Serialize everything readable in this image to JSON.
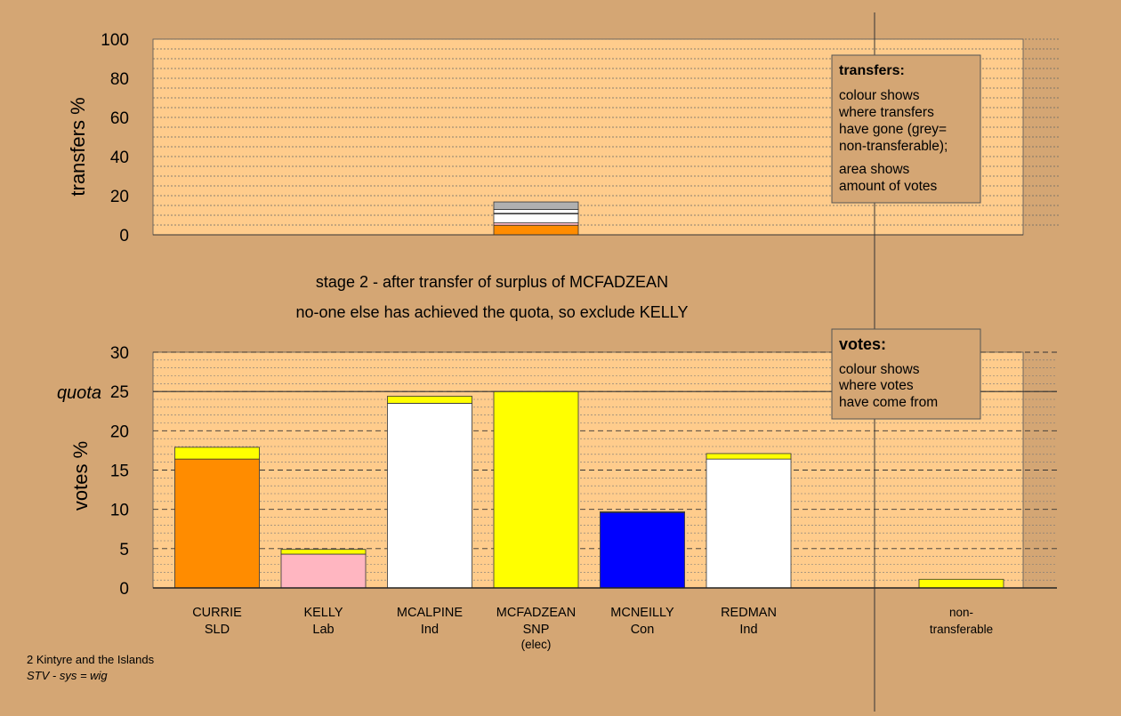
{
  "colors": {
    "background": "#d4a674",
    "plot_bg": "#ffcc8c",
    "SLD": "#ff8c00",
    "Lab": "#ffb6c1",
    "Ind": "#ffffff",
    "SNP": "#ffff00",
    "Con": "#0000ff",
    "nontransferable": "#b0b0b0"
  },
  "stage_line1": "stage 2 - after transfer of surplus of MCFADZEAN",
  "stage_line2": "no-one else has achieved the quota, so exclude KELLY",
  "footer": {
    "line1": "2 Kintyre and the Islands",
    "line2": "STV - sys = wig"
  },
  "transfers_legend": {
    "title": "transfers:",
    "lines1": [
      "colour shows",
      "where transfers",
      "have gone (grey=",
      "non-transferable);"
    ],
    "lines2": [
      "area shows",
      "amount of votes"
    ]
  },
  "votes_legend": {
    "title": "votes:",
    "lines": [
      "colour shows",
      "where votes",
      "have come from"
    ]
  },
  "chart_data": [
    {
      "type": "bar",
      "ylabel": "transfers %",
      "ylim": [
        0,
        100
      ],
      "yticks": [
        0,
        20,
        40,
        60,
        80,
        100
      ],
      "stacked": true,
      "bars": [
        {
          "slot": 3,
          "segments": [
            {
              "party": "SLD",
              "value": 4.9
            },
            {
              "party": "Lab",
              "value": 1.2
            },
            {
              "party": "Ind",
              "value": 4.6
            },
            {
              "party": "Con",
              "value": 0.3
            },
            {
              "party": "Ind",
              "value": 2.0
            },
            {
              "party": "nontransferable",
              "value": 3.8
            }
          ]
        }
      ]
    },
    {
      "type": "bar",
      "ylabel": "votes %",
      "ylim": [
        0,
        30
      ],
      "yticks": [
        0,
        5,
        10,
        15,
        20,
        25,
        30
      ],
      "quota": 25,
      "quota_label": "quota",
      "stacked": true,
      "categories": [
        {
          "name": "CURRIE",
          "party": "SLD",
          "note": ""
        },
        {
          "name": "KELLY",
          "party": "Lab",
          "note": ""
        },
        {
          "name": "MCALPINE",
          "party": "Ind",
          "note": ""
        },
        {
          "name": "MCFADZEAN",
          "party": "SNP",
          "note": "(elec)"
        },
        {
          "name": "MCNEILLY",
          "party": "Con",
          "note": ""
        },
        {
          "name": "REDMAN",
          "party": "Ind",
          "note": ""
        },
        {
          "name": "non-",
          "party": "transferable",
          "note": ""
        }
      ],
      "bars": [
        {
          "slot": 0,
          "segments": [
            {
              "party": "SLD",
              "value": 16.4
            },
            {
              "party": "SNP",
              "value": 1.5
            }
          ]
        },
        {
          "slot": 1,
          "segments": [
            {
              "party": "Lab",
              "value": 4.3
            },
            {
              "party": "SNP",
              "value": 0.6
            }
          ]
        },
        {
          "slot": 2,
          "segments": [
            {
              "party": "Ind",
              "value": 23.5
            },
            {
              "party": "SNP",
              "value": 0.9
            }
          ]
        },
        {
          "slot": 3,
          "segments": [
            {
              "party": "SNP",
              "value": 25.0
            }
          ]
        },
        {
          "slot": 4,
          "segments": [
            {
              "party": "Con",
              "value": 9.6
            },
            {
              "party": "SNP",
              "value": 0.1
            }
          ]
        },
        {
          "slot": 5,
          "segments": [
            {
              "party": "Ind",
              "value": 16.4
            },
            {
              "party": "SNP",
              "value": 0.7
            }
          ]
        },
        {
          "slot": 7,
          "segments": [
            {
              "party": "SNP",
              "value": 1.1
            }
          ]
        }
      ]
    }
  ]
}
